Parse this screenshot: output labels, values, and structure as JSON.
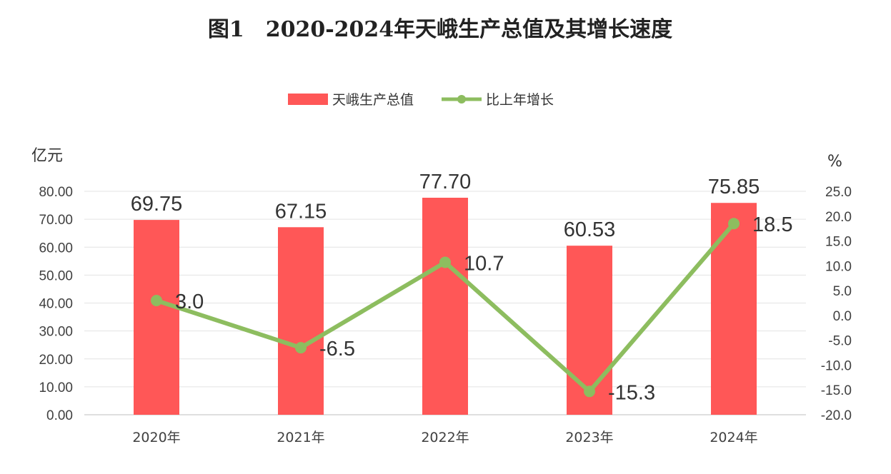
{
  "chart_data": {
    "type": "bar",
    "title": "图1　2020-2024年天峨生产总值及其增长速度",
    "categories": [
      "2020年",
      "2021年",
      "2022年",
      "2023年",
      "2024年"
    ],
    "series": [
      {
        "name": "天峨生产总值",
        "type": "bar",
        "axis": "left",
        "values": [
          69.75,
          67.15,
          77.7,
          60.53,
          75.85
        ],
        "labels": [
          "69.75",
          "67.15",
          "77.70",
          "60.53",
          "75.85"
        ],
        "color": "#FF5757"
      },
      {
        "name": "比上年增长",
        "type": "line",
        "axis": "right",
        "values": [
          3.0,
          -6.5,
          10.7,
          -15.3,
          18.5
        ],
        "labels": [
          "3.0",
          "-6.5",
          "10.7",
          "-15.3",
          "18.5"
        ],
        "color": "#8DBD5F"
      }
    ],
    "ylabel": "亿元",
    "y2label": "%",
    "ylim": [
      0,
      80
    ],
    "y2lim": [
      -20,
      25
    ],
    "yticks": [
      "0.00",
      "10.00",
      "20.00",
      "30.00",
      "40.00",
      "50.00",
      "60.00",
      "70.00",
      "80.00"
    ],
    "y2ticks": [
      "-20.0",
      "-15.0",
      "-10.0",
      "-5.0",
      "0.0",
      "5.0",
      "10.0",
      "15.0",
      "20.0",
      "25.0"
    ],
    "grid": true,
    "legend": "top-center"
  }
}
